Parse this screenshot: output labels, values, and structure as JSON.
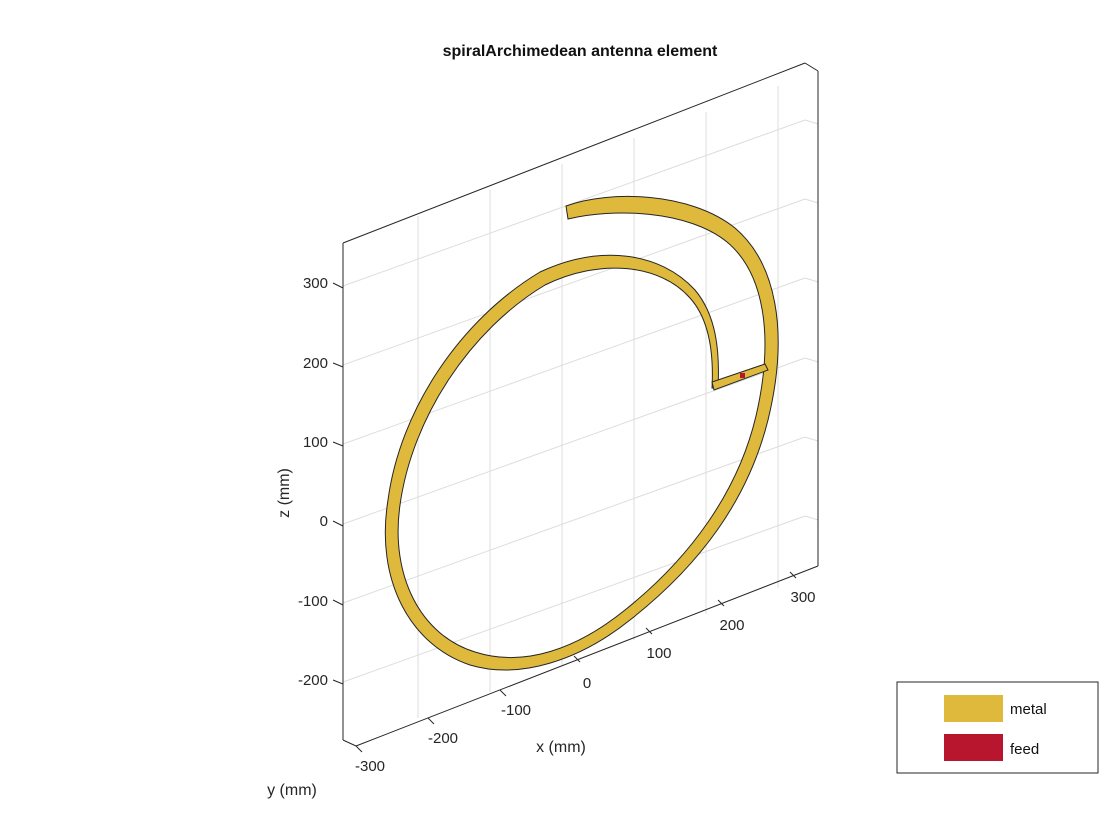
{
  "title": "spiralArchimedean antenna element",
  "axes": {
    "x_label": "x (mm)",
    "y_label": "y (mm)",
    "z_label": "z (mm)",
    "x_ticks": [
      "0",
      "100",
      "200",
      "300"
    ],
    "y_ticks": [
      "-300",
      "-200",
      "-100"
    ],
    "z_ticks": [
      "300",
      "200",
      "100",
      "0",
      "-100",
      "-200"
    ]
  },
  "legend": {
    "position": "bottom-right",
    "items": [
      {
        "label": "metal",
        "color": "#dfb93c"
      },
      {
        "label": "feed",
        "color": "#b8152e"
      }
    ]
  },
  "colors": {
    "metal": "#dfb93c",
    "feed": "#b8152e",
    "axes": "#262626",
    "grid": "#dddddd"
  }
}
